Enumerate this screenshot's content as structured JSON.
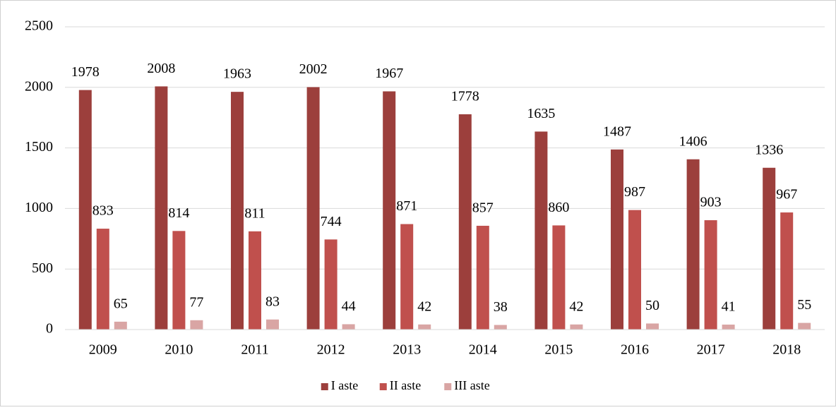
{
  "chart_data": {
    "type": "bar",
    "categories": [
      "2009",
      "2010",
      "2011",
      "2012",
      "2013",
      "2014",
      "2015",
      "2016",
      "2017",
      "2018"
    ],
    "series": [
      {
        "name": "I aste",
        "color": "#9c3f3c",
        "values": [
          1978,
          2008,
          1963,
          2002,
          1967,
          1778,
          1635,
          1487,
          1406,
          1336
        ]
      },
      {
        "name": "II aste",
        "color": "#c0504d",
        "values": [
          833,
          814,
          811,
          744,
          871,
          857,
          860,
          987,
          903,
          967
        ]
      },
      {
        "name": "III aste",
        "color": "#d9a5a4",
        "values": [
          65,
          77,
          83,
          44,
          42,
          38,
          42,
          50,
          41,
          55
        ]
      }
    ],
    "ylim": [
      0,
      2500
    ],
    "yticks": [
      0,
      500,
      1000,
      1500,
      2000,
      2500
    ],
    "grid": true,
    "legend": "bottom"
  }
}
